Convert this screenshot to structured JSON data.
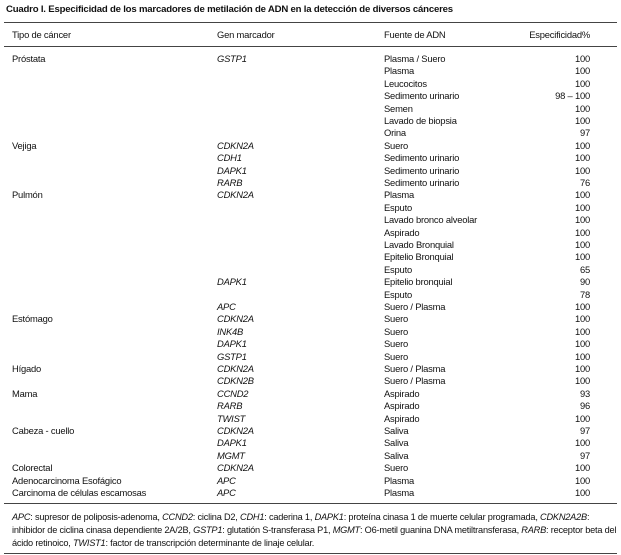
{
  "title": "Cuadro I. Especificidad de los marcadores de metilación de ADN en la detección de diversos cánceres",
  "table": {
    "header": [
      "Tipo de cáncer",
      "Gen marcador",
      "Fuente de ADN",
      "Especificidad%"
    ],
    "rows": [
      [
        "Próstata",
        "GSTP1",
        "Plasma / Suero",
        "100"
      ],
      [
        null,
        null,
        "Plasma",
        "100"
      ],
      [
        null,
        null,
        "Leucocitos",
        "100"
      ],
      [
        null,
        null,
        "Sedimento urinario",
        "98 – 100"
      ],
      [
        null,
        null,
        "Semen",
        "100"
      ],
      [
        null,
        null,
        "Lavado de biopsia",
        "100"
      ],
      [
        null,
        null,
        "Orina",
        "97"
      ],
      [
        "Vejiga",
        "CDKN2A",
        "Suero",
        "100"
      ],
      [
        null,
        "CDH1",
        "Sedimento urinario",
        "100"
      ],
      [
        null,
        "DAPK1",
        "Sedimento urinario",
        "100"
      ],
      [
        null,
        "RARB",
        "Sedimento urinario",
        "76"
      ],
      [
        "Pulmón",
        "CDKN2A",
        "Plasma",
        "100"
      ],
      [
        null,
        null,
        "Esputo",
        "100"
      ],
      [
        null,
        null,
        "Lavado bronco alveolar",
        "100"
      ],
      [
        null,
        null,
        "Aspirado",
        "100"
      ],
      [
        null,
        null,
        "Lavado Bronquial",
        "100"
      ],
      [
        null,
        null,
        "Epitelio Bronquial",
        "100"
      ],
      [
        null,
        null,
        "Esputo",
        "65"
      ],
      [
        null,
        "DAPK1",
        "Epitelio bronquial",
        "90"
      ],
      [
        null,
        null,
        "Esputo",
        "78"
      ],
      [
        null,
        "APC",
        "Suero / Plasma",
        "100"
      ],
      [
        "Estómago",
        "CDKN2A",
        "Suero",
        "100"
      ],
      [
        null,
        "INK4B",
        "Suero",
        "100"
      ],
      [
        null,
        "DAPK1",
        "Suero",
        "100"
      ],
      [
        null,
        "GSTP1",
        "Suero",
        "100"
      ],
      [
        "Hígado",
        "CDKN2A",
        "Suero / Plasma",
        "100"
      ],
      [
        null,
        "CDKN2B",
        "Suero / Plasma",
        "100"
      ],
      [
        "Mama",
        "CCND2",
        "Aspirado",
        "93"
      ],
      [
        null,
        "RARB",
        "Aspirado",
        "96"
      ],
      [
        null,
        "TWIST",
        "Aspirado",
        "100"
      ],
      [
        "Cabeza - cuello",
        "CDKN2A",
        "Saliva",
        "97"
      ],
      [
        null,
        "DAPK1",
        "Saliva",
        "100"
      ],
      [
        null,
        "MGMT",
        "Saliva",
        "97"
      ],
      [
        "Colorectal",
        "CDKN2A",
        "Suero",
        "100"
      ],
      [
        "Adenocarcinoma Esofágico",
        "APC",
        "Plasma",
        "100"
      ],
      [
        "Carcinoma de células escamosas",
        "APC",
        "Plasma",
        "100"
      ]
    ]
  },
  "footnote": [
    {
      "text": "APC",
      "italic": true
    },
    {
      "text": ": supresor de poliposis-adenoma, ",
      "italic": false
    },
    {
      "text": "CCND2",
      "italic": true
    },
    {
      "text": ": ciclina D2, ",
      "italic": false
    },
    {
      "text": "CDH1",
      "italic": true
    },
    {
      "text": ": caderina 1, ",
      "italic": false
    },
    {
      "text": "DAPK1",
      "italic": true
    },
    {
      "text": ": proteína cinasa 1 de muerte celular programada, ",
      "italic": false
    },
    {
      "text": "CDKN2A2B",
      "italic": true
    },
    {
      "text": ": inhibidor de ciclina cinasa dependiente 2A/2B, ",
      "italic": false
    },
    {
      "text": "GSTP1",
      "italic": true
    },
    {
      "text": ": glutatión S-transferasa P1, ",
      "italic": false
    },
    {
      "text": "MGMT",
      "italic": true
    },
    {
      "text": ": O6-metil guanina DNA metiltransferasa, ",
      "italic": false
    },
    {
      "text": "RARB",
      "italic": true
    },
    {
      "text": ": receptor beta del ácido retinoico, ",
      "italic": false
    },
    {
      "text": "TWIST1",
      "italic": true
    },
    {
      "text": ": factor de transcripción determinante de linaje celular.",
      "italic": false
    }
  ]
}
